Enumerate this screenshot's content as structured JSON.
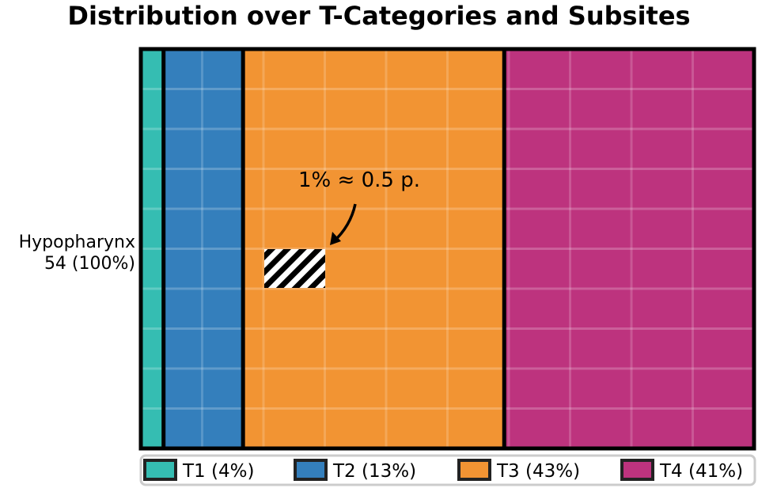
{
  "chart_data": {
    "type": "bar",
    "title": "Distribution over T-Categories and Subsites",
    "rows": [
      {
        "label": "Hypopharynx",
        "count_label": "54 (100%)",
        "total": 54
      }
    ],
    "series": [
      {
        "name": "T1 (4%)",
        "value": 2,
        "color": "#35bdb2"
      },
      {
        "name": "T2 (13%)",
        "value": 7,
        "color": "#347fbc"
      },
      {
        "name": "T3 (43%)",
        "value": 23,
        "color": "#f29433"
      },
      {
        "name": "T4 (41%)",
        "value": 22,
        "color": "#bd337e"
      }
    ],
    "annotation": {
      "text": "1% ≈ 0.5 p.",
      "unit_percent": 1,
      "unit_value": 0.5
    },
    "legend_position": "bottom",
    "grid": true
  }
}
